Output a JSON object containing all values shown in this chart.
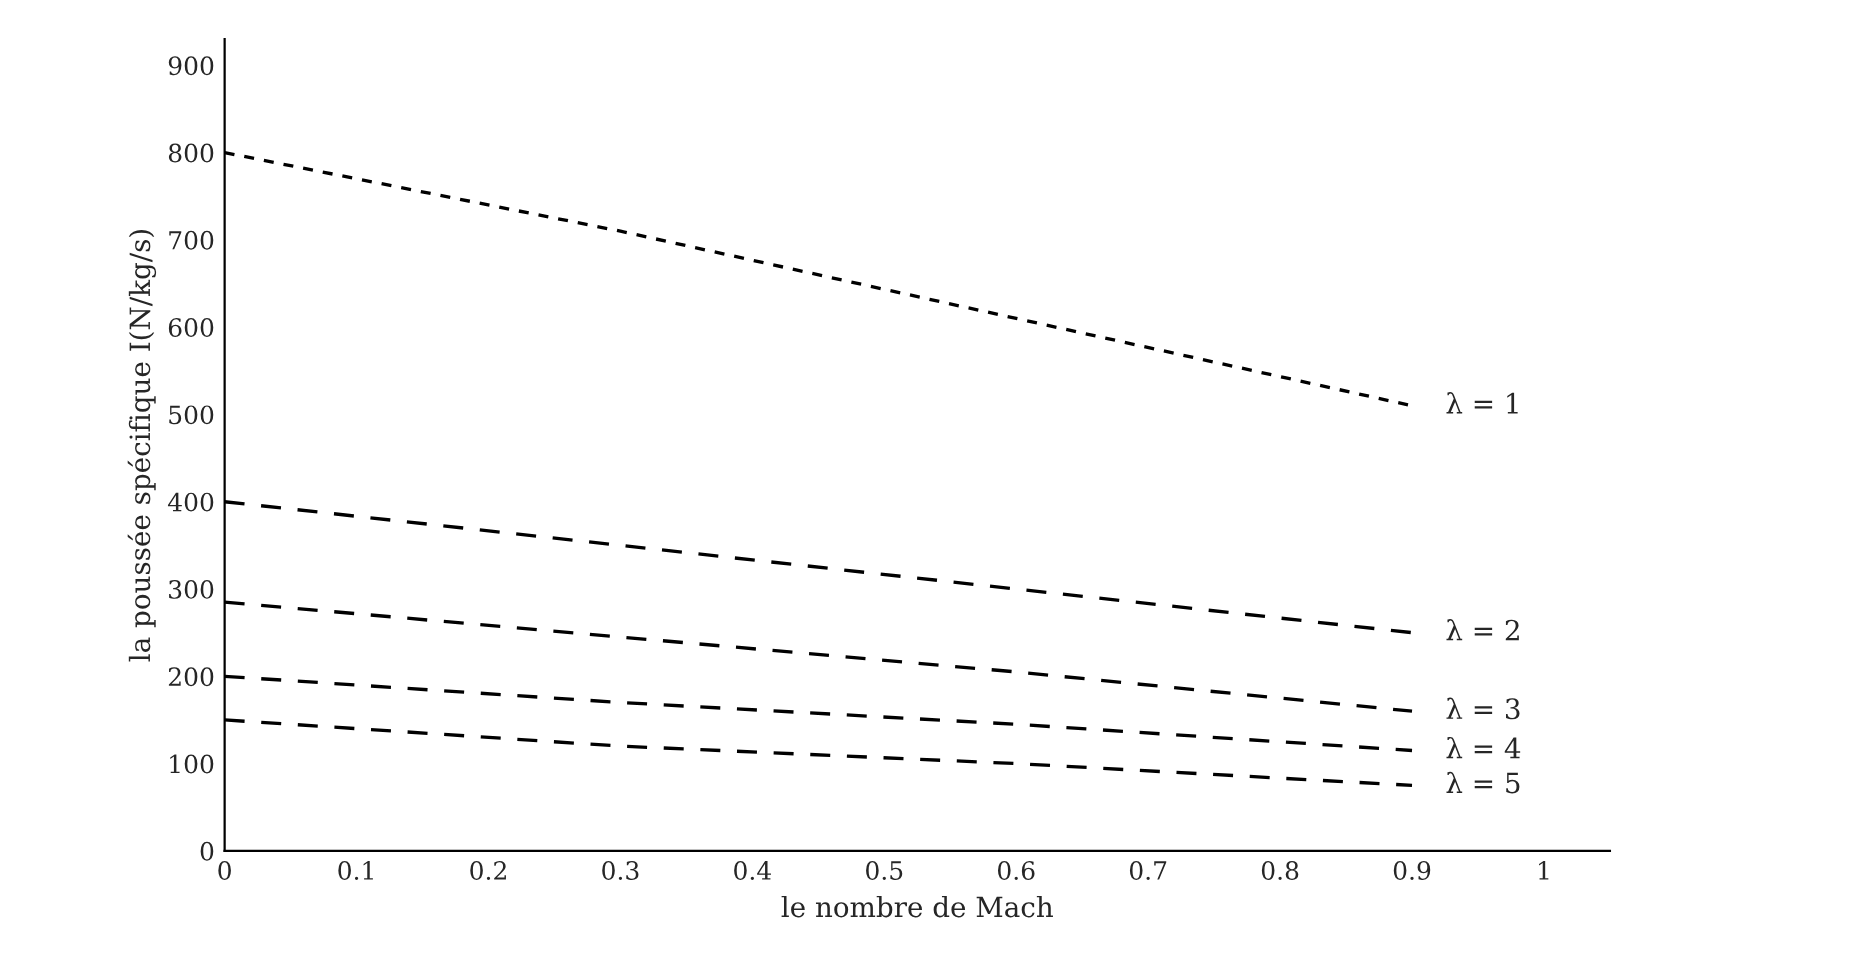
{
  "chart_data": {
    "type": "line",
    "xlabel": "le nombre de Mach",
    "ylabel": "la poussée spécifique I(N/kg/s)",
    "xlim": [
      0,
      1.05
    ],
    "xticks": [
      0,
      0.1,
      0.2,
      0.3,
      0.4,
      0.5,
      0.6,
      0.7,
      0.8,
      0.9,
      1
    ],
    "ylim": [
      0,
      930
    ],
    "yticks": [
      0,
      100,
      200,
      300,
      400,
      500,
      600,
      700,
      800,
      900
    ],
    "grid": false,
    "legend": false,
    "marker": "none",
    "series": [
      {
        "name": "λ = 1",
        "color": "#000000",
        "line_style": "dotted",
        "x": [
          0,
          0.3,
          0.6,
          0.9
        ],
        "values": [
          800,
          710,
          610,
          510
        ]
      },
      {
        "name": "λ = 2",
        "color": "#000000",
        "line_style": "dashed",
        "x": [
          0,
          0.3,
          0.6,
          0.9
        ],
        "values": [
          400,
          350,
          300,
          250
        ]
      },
      {
        "name": "λ = 3",
        "color": "#000000",
        "line_style": "dashed",
        "x": [
          0,
          0.3,
          0.6,
          0.9
        ],
        "values": [
          285,
          245,
          205,
          160
        ]
      },
      {
        "name": "λ = 4",
        "color": "#000000",
        "line_style": "dashed",
        "x": [
          0,
          0.3,
          0.6,
          0.9
        ],
        "values": [
          200,
          170,
          145,
          115
        ]
      },
      {
        "name": "λ = 5",
        "color": "#000000",
        "line_style": "dashed",
        "x": [
          0,
          0.3,
          0.6,
          0.9
        ],
        "values": [
          150,
          120,
          100,
          75
        ]
      }
    ]
  }
}
